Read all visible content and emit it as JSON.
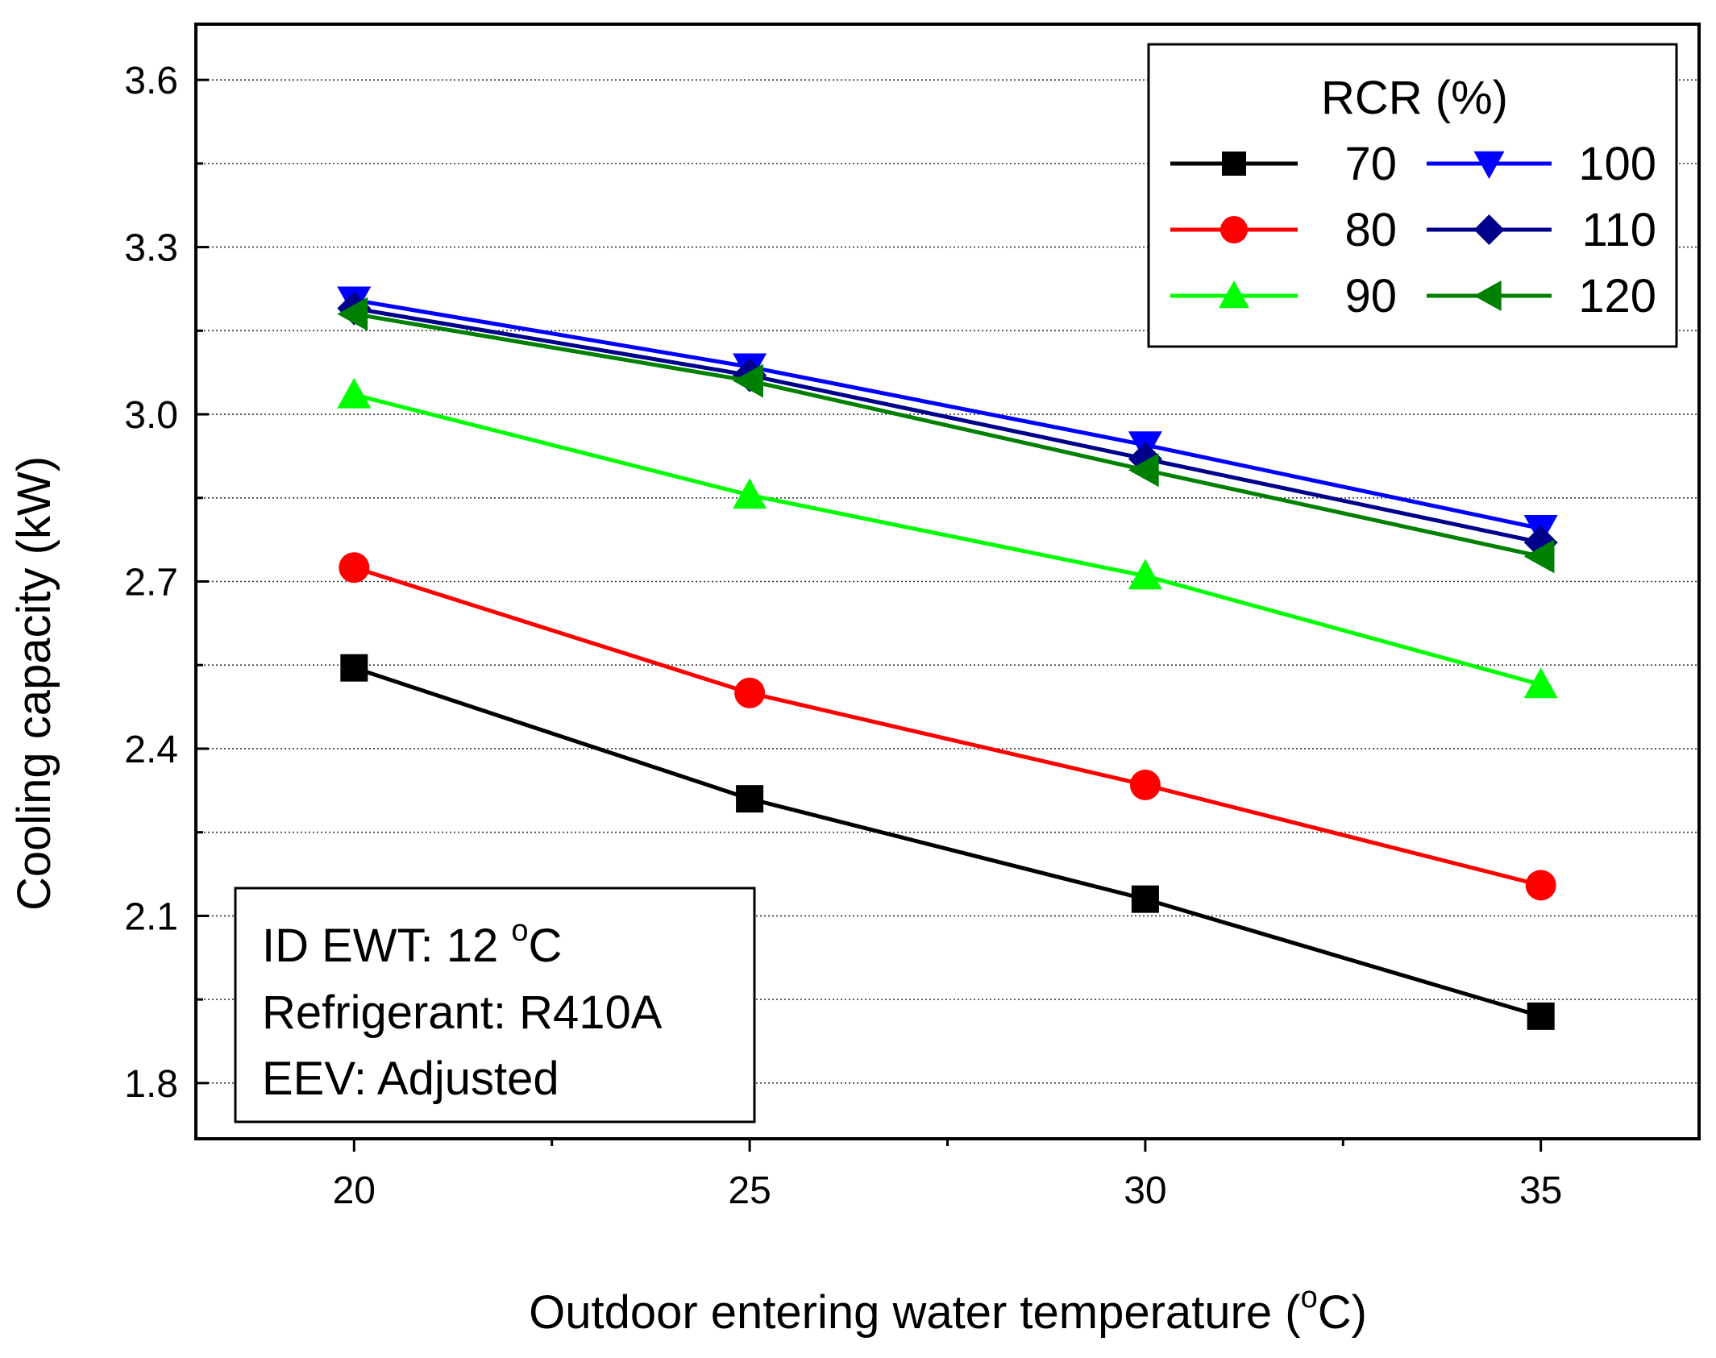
{
  "chart_data": {
    "type": "line",
    "xlabel": "Outdoor entering water temperature (",
    "xlabel_unit_sup": "o",
    "xlabel_unit_tail": "C)",
    "ylabel": "Cooling capacity (kW)",
    "x": [
      20,
      25,
      30,
      35
    ],
    "xlim": [
      18,
      37
    ],
    "ylim": [
      1.7,
      3.7
    ],
    "xticks": [
      "20",
      "25",
      "30",
      "35"
    ],
    "yticks": [
      "1.8",
      "2.1",
      "2.4",
      "2.7",
      "3.0",
      "3.3",
      "3.6"
    ],
    "grid": "horizontal dotted",
    "legend": {
      "title": "RCR (%)",
      "placement": "top-right"
    },
    "series": [
      {
        "name": "70",
        "color": "#000000",
        "marker": "square",
        "values": [
          2.545,
          2.31,
          2.13,
          1.92
        ]
      },
      {
        "name": "80",
        "color": "#ff0000",
        "marker": "circle",
        "values": [
          2.725,
          2.5,
          2.335,
          2.155
        ]
      },
      {
        "name": "90",
        "color": "#00ff00",
        "marker": "triangle-up",
        "values": [
          3.035,
          2.855,
          2.71,
          2.515
        ]
      },
      {
        "name": "100",
        "color": "#0000ff",
        "marker": "triangle-down",
        "values": [
          3.205,
          3.085,
          2.945,
          2.795
        ]
      },
      {
        "name": "110",
        "color": "#00008b",
        "marker": "diamond",
        "values": [
          3.19,
          3.07,
          2.92,
          2.77
        ]
      },
      {
        "name": "120",
        "color": "#008000",
        "marker": "triangle-left",
        "values": [
          3.18,
          3.06,
          2.9,
          2.745
        ]
      }
    ],
    "annotation": {
      "line1": "ID EWT: 12 ",
      "line1_sup": "o",
      "line1_tail": "C",
      "line2": "Refrigerant: R410A",
      "line3": "EEV: Adjusted"
    }
  }
}
